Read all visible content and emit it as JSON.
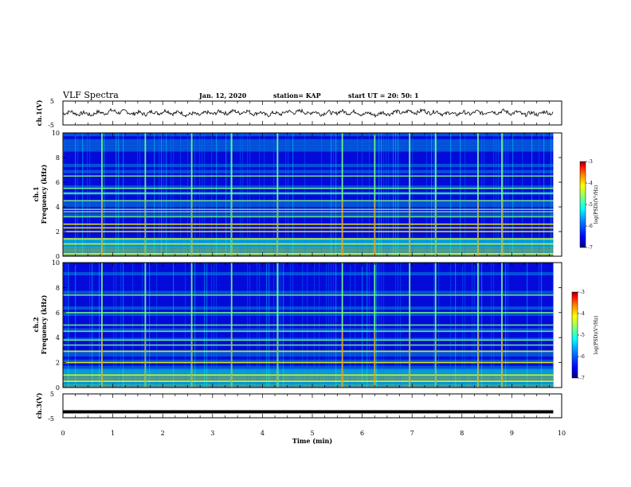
{
  "header": {
    "title": "VLF Spectra",
    "date": "Jan. 12, 2020",
    "station": "station= KAP",
    "start": "start UT =  20: 50: 1"
  },
  "chart_data": [
    {
      "type": "line",
      "panel": "ch1-waveform",
      "ylabel": "ch.1(V)",
      "ylim": [
        -5,
        5
      ],
      "yticks": [
        "5",
        "-5"
      ],
      "xlim": [
        0,
        10
      ],
      "x_end": 9.83,
      "description_values": [
        0.6,
        -0.8,
        1.2,
        -0.4,
        0.9,
        -1.1,
        0.3,
        0.8,
        -0.9,
        1.0,
        -0.2,
        0.7,
        -1.0,
        0.5,
        1.1,
        -0.6,
        0.2,
        0.9,
        -0.7,
        0.4
      ]
    },
    {
      "type": "heatmap",
      "panel": "ch1-spectrogram",
      "ylabel": "ch.1\nFrequency (kHz)",
      "ylabel_lines": [
        "ch.1",
        "Frequency (kHz)"
      ],
      "ylim": [
        0,
        10
      ],
      "yticks": [
        "0",
        "2",
        "4",
        "6",
        "8",
        "10"
      ],
      "xlim": [
        0,
        10
      ],
      "x_end": 9.83,
      "bright_times": [
        0.78,
        1.65,
        2.58,
        3.38,
        4.3,
        5.6,
        6.25,
        6.95,
        7.47,
        8.32,
        8.8
      ],
      "line_freqs": [
        0.2,
        1.0,
        1.4,
        2.0,
        2.3,
        2.6,
        3.2,
        3.6,
        3.8,
        4.5,
        5.1,
        5.5,
        6.5
      ],
      "colorbar": {
        "label": "log(PSD)(V²/Hz)",
        "ticks": [
          "-3",
          "-4",
          "-5",
          "-6",
          "-7"
        ],
        "range": [
          -7,
          -3
        ]
      }
    },
    {
      "type": "heatmap",
      "panel": "ch2-spectrogram",
      "ylabel": "ch.2\nFrequency (kHz)",
      "ylabel_lines": [
        "ch.2",
        "Frequency (kHz)"
      ],
      "ylim": [
        0,
        10
      ],
      "yticks": [
        "0",
        "2",
        "4",
        "6",
        "8",
        "10"
      ],
      "xlim": [
        0,
        10
      ],
      "x_end": 9.83,
      "bright_times": [
        0.78,
        1.65,
        2.58,
        3.38,
        4.3,
        5.6,
        6.25,
        6.95,
        7.47,
        8.32,
        8.8
      ],
      "line_freqs": [
        0.5,
        1.0,
        2.0,
        2.9,
        3.4,
        3.8,
        4.5,
        5.0,
        6.0,
        7.4
      ],
      "colorbar": {
        "label": "log(PSD)(V²/Hz)",
        "ticks": [
          "-3",
          "-4",
          "-5",
          "-6",
          "-7"
        ],
        "range": [
          -7,
          -3
        ]
      }
    },
    {
      "type": "line",
      "panel": "ch3-waveform",
      "ylabel": "ch.3(V)",
      "ylim": [
        -5,
        5
      ],
      "yticks": [
        "5",
        "-5"
      ],
      "xlim": [
        0,
        10
      ],
      "x_end": 9.83,
      "constant_value": -2.5
    }
  ],
  "xaxis": {
    "label": "Time (min)",
    "ticks": [
      "0",
      "1",
      "2",
      "3",
      "4",
      "5",
      "6",
      "7",
      "8",
      "9",
      "10"
    ]
  },
  "colors": {
    "colormap": [
      "#00007f",
      "#0000ff",
      "#007fff",
      "#00ffff",
      "#7fff7f",
      "#ffff00",
      "#ff7f00",
      "#ff0000",
      "#7f0000"
    ]
  }
}
